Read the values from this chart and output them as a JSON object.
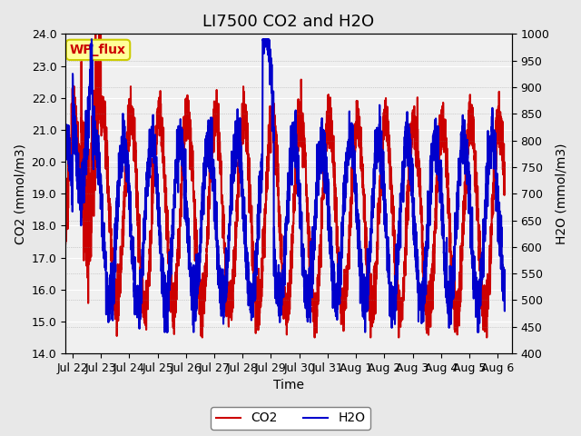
{
  "title": "LI7500 CO2 and H2O",
  "xlabel": "Time",
  "ylabel_left": "CO2 (mmol/m3)",
  "ylabel_right": "H2O (mmol/m3)",
  "co2_ylim": [
    14.0,
    24.0
  ],
  "h2o_ylim": [
    400,
    1000
  ],
  "co2_yticks": [
    14.0,
    15.0,
    16.0,
    17.0,
    18.0,
    19.0,
    20.0,
    21.0,
    22.0,
    23.0,
    24.0
  ],
  "h2o_yticks": [
    400,
    450,
    500,
    550,
    600,
    650,
    700,
    750,
    800,
    850,
    900,
    950,
    1000
  ],
  "co2_color": "#cc0000",
  "h2o_color": "#0000cc",
  "legend_box_color": "#ffff99",
  "legend_box_edge": "#cccc00",
  "annotation_text": "WP_flux",
  "annotation_color": "#cc0000",
  "bg_color": "#e8e8e8",
  "plot_bg_color": "#f0f0f0",
  "line_width": 1.5,
  "n_points": 3600,
  "title_fontsize": 13,
  "axis_label_fontsize": 10,
  "tick_fontsize": 9
}
